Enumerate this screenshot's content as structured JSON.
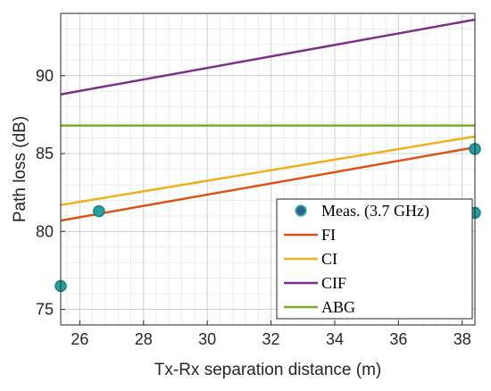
{
  "chart_data": {
    "type": "line",
    "xlabel": "Tx-Rx separation distance (m)",
    "ylabel": "Path loss (dB)",
    "xlim": [
      25.4,
      38.4
    ],
    "ylim": [
      74,
      94
    ],
    "xticks": [
      26,
      28,
      30,
      32,
      34,
      36,
      38
    ],
    "yticks": [
      75,
      80,
      85,
      90
    ],
    "xminor_step": 0.4,
    "yminor_step": 1,
    "grid": true,
    "legend_placement": "bottom-right",
    "measurements": {
      "name": "Meas. (3.7 GHz)",
      "marker_color": "#2a9d9e",
      "points": [
        {
          "x": 25.4,
          "y": 76.5
        },
        {
          "x": 26.6,
          "y": 81.3
        },
        {
          "x": 38.4,
          "y": 85.3
        },
        {
          "x": 38.4,
          "y": 81.2
        }
      ]
    },
    "series": [
      {
        "name": "FI",
        "color": "#d95319",
        "x": [
          25.4,
          38.4
        ],
        "y": [
          80.7,
          85.4
        ]
      },
      {
        "name": "CI",
        "color": "#edb120",
        "x": [
          25.4,
          38.4
        ],
        "y": [
          81.7,
          86.1
        ]
      },
      {
        "name": "CIF",
        "color": "#7e2f8e",
        "x": [
          25.4,
          38.4
        ],
        "y": [
          88.8,
          93.6
        ]
      },
      {
        "name": "ABG",
        "color": "#77ac30",
        "x": [
          25.4,
          38.4
        ],
        "y": [
          86.8,
          86.8
        ]
      }
    ]
  }
}
